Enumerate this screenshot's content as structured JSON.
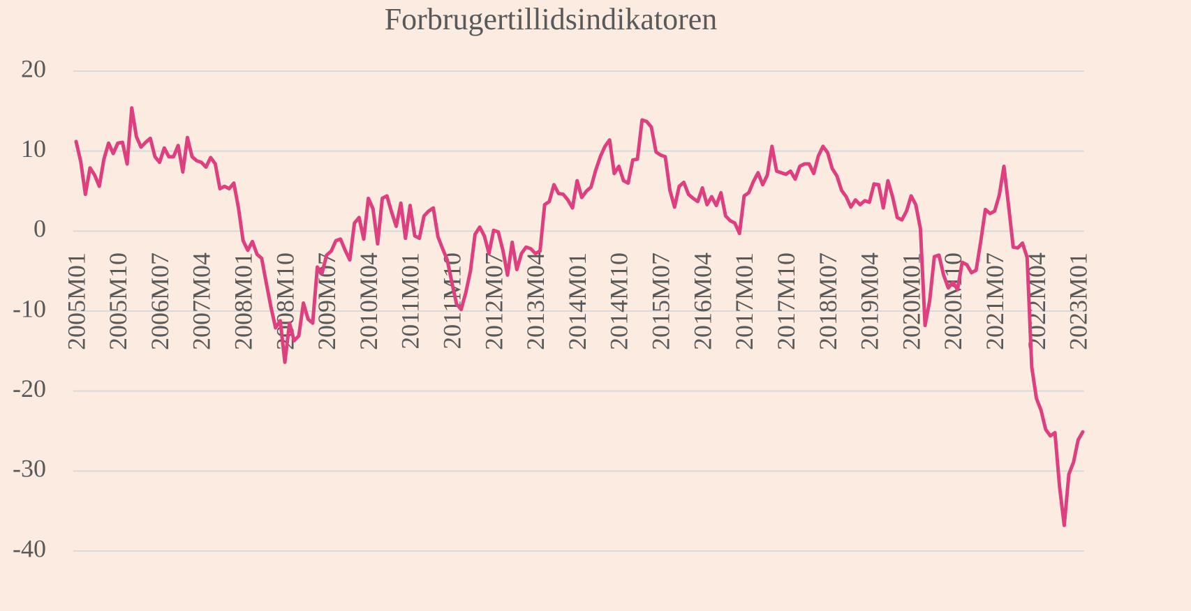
{
  "chart_data": {
    "type": "line",
    "title": "Forbrugertillidsindikatoren",
    "categories": [
      "2005M01",
      null,
      null,
      null,
      null,
      null,
      null,
      null,
      null,
      "2005M10",
      null,
      null,
      null,
      null,
      null,
      null,
      null,
      null,
      "2006M07",
      null,
      null,
      null,
      null,
      null,
      null,
      null,
      null,
      "2007M04",
      null,
      null,
      null,
      null,
      null,
      null,
      null,
      null,
      "2008M01",
      null,
      null,
      null,
      null,
      null,
      null,
      null,
      null,
      "2008M10",
      null,
      null,
      null,
      null,
      null,
      null,
      null,
      null,
      "2009M07",
      null,
      null,
      null,
      null,
      null,
      null,
      null,
      null,
      "2010M04",
      null,
      null,
      null,
      null,
      null,
      null,
      null,
      null,
      "2011M01",
      null,
      null,
      null,
      null,
      null,
      null,
      null,
      null,
      "2011M10",
      null,
      null,
      null,
      null,
      null,
      null,
      null,
      null,
      "2012M07",
      null,
      null,
      null,
      null,
      null,
      null,
      null,
      null,
      "2013M04",
      null,
      null,
      null,
      null,
      null,
      null,
      null,
      null,
      "2014M01",
      null,
      null,
      null,
      null,
      null,
      null,
      null,
      null,
      "2014M10",
      null,
      null,
      null,
      null,
      null,
      null,
      null,
      null,
      "2015M07",
      null,
      null,
      null,
      null,
      null,
      null,
      null,
      null,
      "2016M04",
      null,
      null,
      null,
      null,
      null,
      null,
      null,
      null,
      "2017M01",
      null,
      null,
      null,
      null,
      null,
      null,
      null,
      null,
      "2017M10",
      null,
      null,
      null,
      null,
      null,
      null,
      null,
      null,
      "2018M07",
      null,
      null,
      null,
      null,
      null,
      null,
      null,
      null,
      "2019M04",
      null,
      null,
      null,
      null,
      null,
      null,
      null,
      null,
      "2020M01",
      null,
      null,
      null,
      null,
      null,
      null,
      null,
      null,
      "2020M10",
      null,
      null,
      null,
      null,
      null,
      null,
      null,
      null,
      "2021M07",
      null,
      null,
      null,
      null,
      null,
      null,
      null,
      null,
      "2022M04",
      null,
      null,
      null,
      null,
      null,
      null,
      null,
      null,
      "2023M01",
      null
    ],
    "values": [
      11.2,
      8.7,
      4.6,
      7.9,
      7.0,
      5.6,
      9.0,
      11.0,
      9.7,
      11.0,
      11.1,
      8.4,
      15.4,
      11.8,
      10.5,
      11.1,
      11.6,
      9.3,
      8.6,
      10.4,
      9.3,
      9.3,
      10.7,
      7.4,
      11.7,
      9.3,
      8.8,
      8.6,
      8.0,
      9.2,
      8.4,
      5.3,
      5.6,
      5.3,
      6.0,
      2.9,
      -1.2,
      -2.4,
      -1.3,
      -2.9,
      -3.4,
      -6.5,
      -9.5,
      -12.1,
      -11.2,
      -16.4,
      -11.5,
      -13.7,
      -13.1,
      -9.0,
      -11.0,
      -11.5,
      -4.5,
      -5.3,
      -3.0,
      -2.5,
      -1.2,
      -1.0,
      -2.4,
      -3.6,
      1.0,
      1.7,
      -1.0,
      4.1,
      2.8,
      -1.6,
      4.1,
      4.4,
      2.4,
      0.6,
      3.5,
      -0.9,
      3.2,
      -0.6,
      -0.9,
      1.9,
      2.5,
      2.9,
      -0.7,
      -2.2,
      -3.6,
      -6.4,
      -9.1,
      -9.8,
      -7.7,
      -5.0,
      -0.4,
      0.5,
      -0.6,
      -2.8,
      0.1,
      -0.1,
      -2.4,
      -5.5,
      -1.4,
      -4.8,
      -2.8,
      -2.0,
      -2.2,
      -2.8,
      -2.5,
      3.3,
      3.7,
      5.8,
      4.7,
      4.6,
      3.9,
      2.9,
      6.3,
      4.2,
      5.0,
      5.5,
      7.6,
      9.3,
      10.6,
      11.4,
      7.2,
      8.1,
      6.3,
      6.0,
      8.9,
      9.0,
      13.9,
      13.7,
      13.0,
      9.9,
      9.5,
      9.3,
      5.1,
      3.0,
      5.6,
      6.1,
      4.6,
      4.1,
      3.7,
      5.4,
      3.3,
      4.3,
      3.2,
      4.8,
      1.9,
      1.3,
      1.0,
      -0.3,
      4.4,
      4.8,
      6.2,
      7.3,
      5.8,
      7.0,
      10.6,
      7.5,
      7.3,
      7.1,
      7.5,
      6.5,
      8.1,
      8.4,
      8.4,
      7.2,
      9.4,
      10.6,
      9.8,
      7.8,
      6.9,
      5.1,
      4.3,
      3.0,
      3.9,
      3.3,
      3.8,
      3.6,
      5.9,
      5.8,
      2.9,
      6.3,
      4.3,
      1.7,
      1.4,
      2.5,
      4.4,
      3.3,
      0.3,
      -11.8,
      -8.7,
      -3.2,
      -3.0,
      -5.5,
      -7.1,
      -6.4,
      -7.3,
      -3.9,
      -4.2,
      -5.2,
      -4.9,
      -1.3,
      2.7,
      2.2,
      2.5,
      4.5,
      8.1,
      3.2,
      -2.0,
      -2.1,
      -1.5,
      -3.3,
      -17.0,
      -20.9,
      -22.4,
      -24.8,
      -25.6,
      -25.2,
      -32.0,
      -36.8,
      -30.4,
      -28.9,
      -26.1,
      -25.1
    ],
    "color": "#dd3f7f",
    "ylim": [
      -40,
      20
    ],
    "yticks": [
      -40,
      -30,
      -20,
      -10,
      0,
      10,
      20
    ],
    "grid": true
  }
}
